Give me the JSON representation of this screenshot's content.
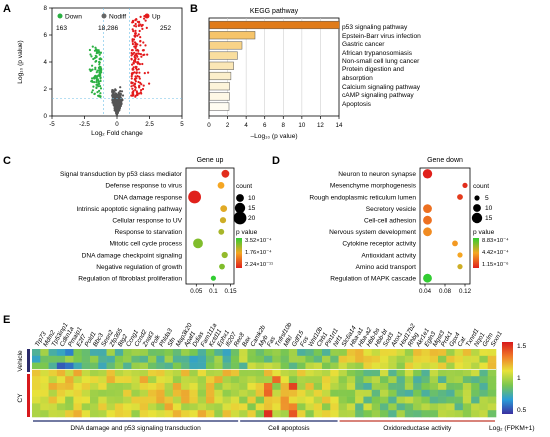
{
  "panels": [
    "A",
    "B",
    "C",
    "D",
    "E"
  ],
  "chart_data": [
    {
      "type": "scatter",
      "panel": "A",
      "xlabel": "Log₂ Fold change",
      "ylabel": "Log₁₀ (p value)",
      "xlim": [
        -5,
        5
      ],
      "ylim": [
        0,
        8
      ],
      "xticks": [
        "-5",
        "-2.5",
        "0",
        "2.5",
        "5"
      ],
      "yticks": [
        "0",
        "2",
        "4",
        "6",
        "8"
      ],
      "groups": [
        {
          "name": "Down",
          "count": "163",
          "color": "#2bb043"
        },
        {
          "name": "Nodiff",
          "count": "18,286",
          "color": "#555555"
        },
        {
          "name": "Up",
          "count": "252",
          "color": "#e31a1c"
        }
      ],
      "thresholds": {
        "x": [
          -1,
          1
        ],
        "y": 1.3
      }
    },
    {
      "type": "bar",
      "panel": "B",
      "title": "KEGG pathway",
      "xlabel": "–Log₁₀ (p value)",
      "xlim": [
        0,
        14
      ],
      "xticks": [
        "0",
        "2",
        "4",
        "6",
        "8",
        "10",
        "12",
        "14"
      ],
      "categories": [
        "p53 signaling pathway",
        "Epstein-Barr virus infection",
        "Gastric cancer",
        "African trypanosomiasis",
        "Non-small cell lung cancer",
        "Protein digestion and absorption",
        "Calcium signaling pathway",
        "cAMP signaling pathway",
        "Apoptosis"
      ],
      "values": [
        14.0,
        4.9,
        3.5,
        3.0,
        2.6,
        2.3,
        2.15,
        2.15,
        2.1
      ]
    },
    {
      "type": "scatter",
      "panel": "C",
      "title": "Gene up",
      "xlim": [
        0.02,
        0.16
      ],
      "xticks": [
        "0.05",
        "0.1",
        "0.15"
      ],
      "categories": [
        "Signal transduction by p53 class mediator",
        "Defense response to virus",
        "DNA damage response",
        "Intrinsic apoptotic signaling pathway",
        "Cellular response to UV",
        "Response to starvation",
        "Mitotic cell cycle process",
        "DNA damage checkpoint signaling",
        "Negative regulation of growth",
        "Regulation of fibroblast proliferation"
      ],
      "ratio": [
        0.135,
        0.122,
        0.045,
        0.13,
        0.128,
        0.123,
        0.055,
        0.133,
        0.125,
        0.1
      ],
      "count": [
        10,
        8,
        20,
        8,
        7,
        6,
        14,
        7,
        6,
        5
      ],
      "pvalue_level": [
        0.05,
        0.5,
        0.0,
        0.55,
        0.6,
        0.7,
        0.8,
        0.75,
        0.8,
        1.0
      ],
      "size_legend_title": "count",
      "size_legend": [
        "10",
        "15",
        "20"
      ],
      "color_legend_title": "p value",
      "color_legend": [
        "3.52×10⁻⁴",
        "1.76×10⁻⁴",
        "2.24×10⁻¹¹"
      ]
    },
    {
      "type": "scatter",
      "panel": "D",
      "title": "Gene down",
      "xlim": [
        0.03,
        0.13
      ],
      "xticks": [
        "0.04",
        "0.08",
        "0.12"
      ],
      "categories": [
        "Neuron to neuron synapse",
        "Mesenchyme morphogenesis",
        "Rough endoplasmic reticulum lumen",
        "Secretory vesicle",
        "Cell-cell adhesion",
        "Nervous system development",
        "Cytokine receptor activity",
        "Antioxidant activity",
        "Amino acid transport",
        "Regulation of MAPK cascade"
      ],
      "ratio": [
        0.045,
        0.12,
        0.11,
        0.045,
        0.045,
        0.045,
        0.1,
        0.11,
        0.11,
        0.045
      ],
      "count": [
        13,
        5,
        6,
        12,
        12,
        12,
        6,
        5,
        5,
        12
      ],
      "pvalue_level": [
        0.0,
        0.05,
        0.1,
        0.3,
        0.3,
        0.4,
        0.45,
        0.5,
        0.6,
        1.0
      ],
      "size_legend_title": "count",
      "size_legend": [
        "5",
        "10",
        "15"
      ],
      "color_legend_title": "p value",
      "color_legend": [
        "8.83×10⁻⁴",
        "4.42×10⁻⁴",
        "1.15×10⁻⁶"
      ]
    },
    {
      "type": "heatmap",
      "panel": "E",
      "genes": [
        "Trp73",
        "Mdm2",
        "Tp53inp1",
        "Cdkn1a",
        "Pmaip1",
        "E2f7",
        "Pold1",
        "Bbc3",
        "Sesn2",
        "Zfp365",
        "Btg2",
        "Ccng1",
        "Ccnd2",
        "Znat3",
        "Polk",
        "Phlda3",
        "Sfn",
        "Map3k20",
        "Apaf1",
        "Ddias",
        "Fam111a",
        "Kctd11",
        "Ephx1",
        "Ifi207",
        "Rec8",
        "Bax",
        "Camk2b",
        "Myb",
        "Fas",
        "Tnfrsf10b",
        "Mlkl",
        "Gdf15",
        "Fos",
        "Wnt10b",
        "Ctrb1",
        "Pin1rt1",
        "Nrf1",
        "Slc6a14",
        "Hba-a1",
        "Hba-a2",
        "Hbb-bs",
        "Hbb-bt",
        "Sod3",
        "Atox1",
        "Hsd17b2",
        "Rhbg",
        "Akr1e1",
        "Egln3",
        "Mgst3",
        "Prdx1",
        "Gpx4",
        "Cat",
        "Txnrd1",
        "Nqo1",
        "Gclm",
        "Srxn1"
      ],
      "rows": [
        "Vehicle",
        "CY"
      ],
      "groups": [
        {
          "label": "DNA damage and p53 signaling transduction",
          "from": 0,
          "to": 24
        },
        {
          "label": "Cell apoptosis",
          "from": 25,
          "to": 36
        },
        {
          "label": "Oxidoreductase activity",
          "from": 37,
          "to": 55
        }
      ],
      "color_scale_ticks": [
        "1.5",
        "1",
        "0.5"
      ],
      "color_scale_label": "Log₂ (FPKM+1)"
    }
  ]
}
